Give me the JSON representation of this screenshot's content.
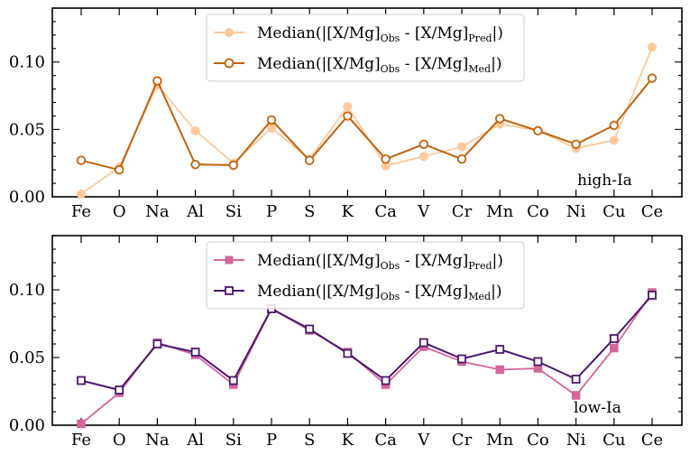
{
  "chart_data": [
    {
      "type": "line",
      "panel": "top",
      "categories": [
        "Fe",
        "O",
        "Na",
        "Al",
        "Si",
        "P",
        "S",
        "K",
        "Ca",
        "V",
        "Cr",
        "Mn",
        "Co",
        "Ni",
        "Cu",
        "Ce"
      ],
      "ylim": [
        0,
        0.14
      ],
      "yticks": [
        "0.00",
        "0.05",
        "0.10"
      ],
      "yticks_values": [
        0,
        0.05,
        0.1
      ],
      "annotation": "high-Ia",
      "series": [
        {
          "name": "pred",
          "legend": {
            "prefix": "Median(|[X/Mg]",
            "sub1": "Obs",
            "mid": " - [X/Mg]",
            "sub2": "Pred",
            "suffix": "|)"
          },
          "color": "#fdc99c",
          "marker": "circle-filled",
          "values": [
            0.002,
            0.022,
            0.083,
            0.049,
            0.025,
            0.051,
            0.028,
            0.067,
            0.023,
            0.03,
            0.037,
            0.054,
            0.049,
            0.036,
            0.042,
            0.111
          ]
        },
        {
          "name": "med",
          "legend": {
            "prefix": "Median(|[X/Mg]",
            "sub1": "Obs",
            "mid": " - [X/Mg]",
            "sub2": "Med",
            "suffix": "|)"
          },
          "color": "#c0620d",
          "marker": "circle-open",
          "values": [
            0.027,
            0.02,
            0.086,
            0.024,
            0.0235,
            0.057,
            0.027,
            0.06,
            0.028,
            0.039,
            0.028,
            0.058,
            0.049,
            0.039,
            0.053,
            0.088
          ]
        }
      ]
    },
    {
      "type": "line",
      "panel": "bottom",
      "categories": [
        "Fe",
        "O",
        "Na",
        "Al",
        "Si",
        "P",
        "S",
        "K",
        "Ca",
        "V",
        "Cr",
        "Mn",
        "Co",
        "Ni",
        "Cu",
        "Ce"
      ],
      "ylim": [
        0,
        0.14
      ],
      "yticks": [
        "0.00",
        "0.05",
        "0.10"
      ],
      "yticks_values": [
        0,
        0.05,
        0.1
      ],
      "annotation": "low-Ia",
      "series": [
        {
          "name": "pred",
          "legend": {
            "prefix": "Median(|[X/Mg]",
            "sub1": "Obs",
            "mid": " - [X/Mg]",
            "sub2": "Pred",
            "suffix": "|)"
          },
          "color": "#d4679a",
          "marker": "square-filled",
          "values": [
            0.001,
            0.024,
            0.061,
            0.052,
            0.03,
            0.086,
            0.07,
            0.054,
            0.03,
            0.058,
            0.047,
            0.041,
            0.042,
            0.022,
            0.057,
            0.098
          ]
        },
        {
          "name": "med",
          "legend": {
            "prefix": "Median(|[X/Mg]",
            "sub1": "Obs",
            "mid": " - [X/Mg]",
            "sub2": "Med",
            "suffix": "|)"
          },
          "color": "#4b176e",
          "marker": "square-open",
          "values": [
            0.033,
            0.026,
            0.06,
            0.054,
            0.033,
            0.086,
            0.071,
            0.053,
            0.033,
            0.061,
            0.049,
            0.056,
            0.047,
            0.034,
            0.064,
            0.096
          ]
        }
      ]
    }
  ]
}
